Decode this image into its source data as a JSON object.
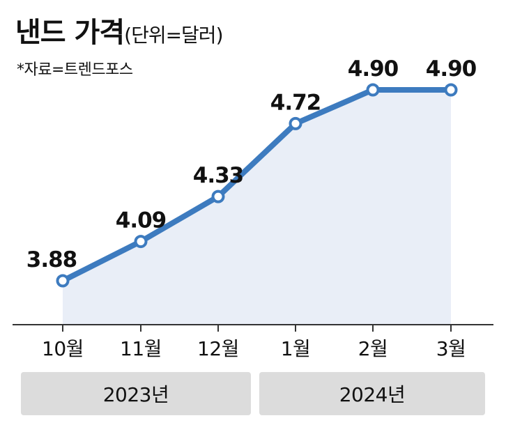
{
  "header": {
    "title": "낸드 가격",
    "unit": "(단위=달러)",
    "source": "*자료=트렌드포스"
  },
  "colors": {
    "line": "#3d7bbf",
    "area": "#e9eef7",
    "axis": "#333333",
    "band": "#dcdcdc"
  },
  "chart_data": {
    "type": "line",
    "title": "낸드 가격",
    "unit": "(단위=달러)",
    "categories": [
      "10월",
      "11월",
      "12월",
      "1월",
      "2월",
      "3월"
    ],
    "values": [
      3.88,
      4.09,
      4.33,
      4.72,
      4.9,
      4.9
    ],
    "value_labels": [
      "3.88",
      "4.09",
      "4.33",
      "4.72",
      "4.90",
      "4.90"
    ],
    "year_groups": [
      {
        "label": "2023년",
        "categories": [
          "10월",
          "11월",
          "12월"
        ]
      },
      {
        "label": "2024년",
        "categories": [
          "1월",
          "2월",
          "3월"
        ]
      }
    ],
    "fill_area": true,
    "grid": false
  }
}
